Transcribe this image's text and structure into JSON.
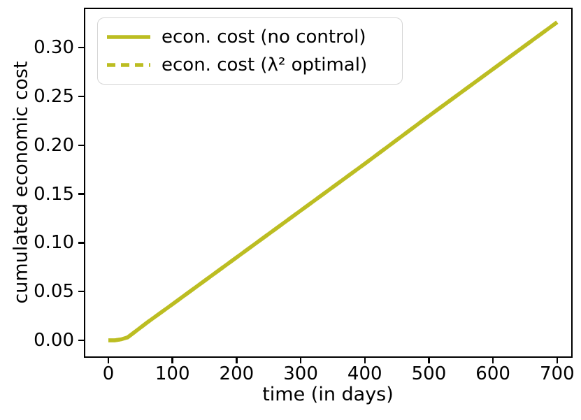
{
  "figure": {
    "background_color": "#ffffff",
    "axes_color": "#000000",
    "legend_border_color": "#d5d5d5"
  },
  "chart_data": {
    "type": "line",
    "title": "",
    "xlabel": "time (in days)",
    "ylabel": "cumulated economic cost",
    "xlim": [
      -36,
      722
    ],
    "ylim": [
      -0.0165,
      0.3395
    ],
    "x_ticks": [
      0,
      100,
      200,
      300,
      400,
      500,
      600,
      700
    ],
    "y_ticks": [
      "0.00",
      "0.05",
      "0.10",
      "0.15",
      "0.20",
      "0.25",
      "0.30"
    ],
    "grid": false,
    "legend_position": "upper left",
    "x": [
      0,
      10,
      20,
      30,
      40,
      60,
      100,
      200,
      300,
      400,
      500,
      600,
      700
    ],
    "series": [
      {
        "name": "econ. cost (no control)",
        "style": "solid",
        "color": "#bcbd22",
        "values": [
          0.0,
          0.0,
          0.001,
          0.003,
          0.008,
          0.018,
          0.037,
          0.085,
          0.133,
          0.181,
          0.23,
          0.278,
          0.326
        ]
      },
      {
        "name": "econ. cost (λ² optimal)",
        "style": "dashed",
        "color": "#bcbd22",
        "values": [
          0.0,
          0.0,
          0.001,
          0.003,
          0.008,
          0.018,
          0.037,
          0.085,
          0.133,
          0.181,
          0.23,
          0.278,
          0.326
        ]
      }
    ]
  }
}
